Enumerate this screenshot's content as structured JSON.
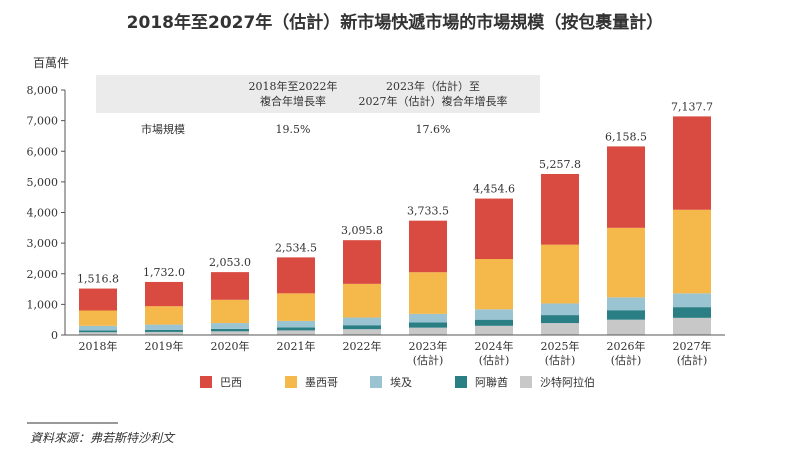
{
  "chart_data": {
    "type": "bar",
    "stacked": true,
    "title": "2018年至2027年（估計）新市場快遞市場的市場規模（按包裹量計）",
    "ylabel": "百萬件",
    "xlabel": "",
    "ylim": [
      0,
      8000
    ],
    "yticks": [
      "0",
      "1,000",
      "2,000",
      "3,000",
      "4,000",
      "5,000",
      "6,000",
      "7,000",
      "8,000"
    ],
    "ytick_values": [
      0,
      1000,
      2000,
      3000,
      4000,
      5000,
      6000,
      7000,
      8000
    ],
    "categories": [
      {
        "line1": "2018年",
        "line2": ""
      },
      {
        "line1": "2019年",
        "line2": ""
      },
      {
        "line1": "2020年",
        "line2": ""
      },
      {
        "line1": "2021年",
        "line2": ""
      },
      {
        "line1": "2022年",
        "line2": ""
      },
      {
        "line1": "2023年",
        "line2": "(估計)"
      },
      {
        "line1": "2024年",
        "line2": "(估計)"
      },
      {
        "line1": "2025年",
        "line2": "(估計)"
      },
      {
        "line1": "2026年",
        "line2": "(估計)"
      },
      {
        "line1": "2027年",
        "line2": "(估計)"
      }
    ],
    "totals": [
      1516.8,
      1732.0,
      2053.0,
      2534.5,
      3095.8,
      3733.5,
      4454.6,
      5257.8,
      6158.5,
      7137.7
    ],
    "total_labels": [
      "1,516.8",
      "1,732.0",
      "2,053.0",
      "2,534.5",
      "3,095.8",
      "3,733.5",
      "4,454.6",
      "5,257.8",
      "6,158.5",
      "7,137.7"
    ],
    "series": [
      {
        "name": "沙特阿拉伯",
        "color": "#c8c8c8",
        "values": [
          90,
          100,
          120,
          150,
          190,
          240,
          300,
          390,
          500,
          560
        ]
      },
      {
        "name": "阿聯酋",
        "color": "#2a7f84",
        "values": [
          60,
          70,
          80,
          100,
          130,
          170,
          200,
          260,
          310,
          350
        ]
      },
      {
        "name": "埃及",
        "color": "#9bc4d3",
        "values": [
          150,
          170,
          190,
          210,
          250,
          280,
          340,
          380,
          420,
          450
        ]
      },
      {
        "name": "墨西哥",
        "color": "#f5b84a",
        "values": [
          500,
          600,
          760,
          900,
          1100,
          1360,
          1640,
          1920,
          2270,
          2730
        ]
      },
      {
        "name": "巴西",
        "color": "#d94a40",
        "values": [
          716.8,
          792.0,
          903.0,
          1174.5,
          1425.8,
          1683.5,
          1974.6,
          2307.8,
          2658.5,
          3047.7
        ]
      }
    ],
    "legend_order": [
      4,
      3,
      2,
      1,
      0
    ],
    "legend_position": "bottom",
    "cagr_table": {
      "col1_header_l1": "2018年至2022年",
      "col1_header_l2": "複合年增長率",
      "col2_header_l1": "2023年（估計）至",
      "col2_header_l2": "2027年（估計）複合年增長率",
      "row_label": "市場規模",
      "col1_value": "19.5%",
      "col2_value": "17.6%"
    }
  },
  "source": "資料來源：弗若斯特沙利文"
}
